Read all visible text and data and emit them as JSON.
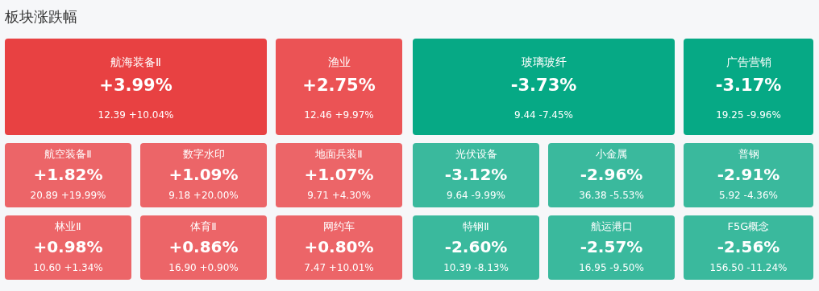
{
  "chart_data": {
    "type": "other",
    "title": "板块涨跌幅",
    "categories": [
      "航海装备Ⅱ",
      "渔业",
      "玻璃玻纤",
      "广告营销",
      "航空装备Ⅱ",
      "数字水印",
      "地面兵装Ⅱ",
      "光伏设备",
      "小金属",
      "普钢",
      "林业Ⅱ",
      "体育Ⅱ",
      "网约车",
      "特钢Ⅱ",
      "航运港口",
      "F5G概念"
    ],
    "values": [
      3.99,
      2.75,
      -3.73,
      -3.17,
      1.82,
      1.09,
      1.07,
      -3.12,
      -2.96,
      -2.91,
      0.98,
      0.86,
      0.8,
      -2.6,
      -2.57,
      -2.56
    ],
    "value_labels": [
      "+3.99%",
      "+2.75%",
      "-3.73%",
      "-3.17%",
      "+1.82%",
      "+1.09%",
      "+1.07%",
      "-3.12%",
      "-2.96%",
      "-2.91%",
      "+0.98%",
      "+0.86%",
      "+0.80%",
      "-2.60%",
      "-2.57%",
      "-2.56%"
    ],
    "annotations": [
      "12.39 +10.04%",
      "12.46 +9.97%",
      "9.44 -7.45%",
      "19.25 -9.96%",
      "20.89 +19.99%",
      "9.18 +20.00%",
      "9.71 +4.30%",
      "9.64 -9.99%",
      "36.38 -5.53%",
      "5.92 -4.36%",
      "10.60 +1.34%",
      "16.90 +0.90%",
      "7.47 +10.01%",
      "10.39 -8.13%",
      "16.95 -9.50%",
      "156.50 -11.24%"
    ]
  }
}
